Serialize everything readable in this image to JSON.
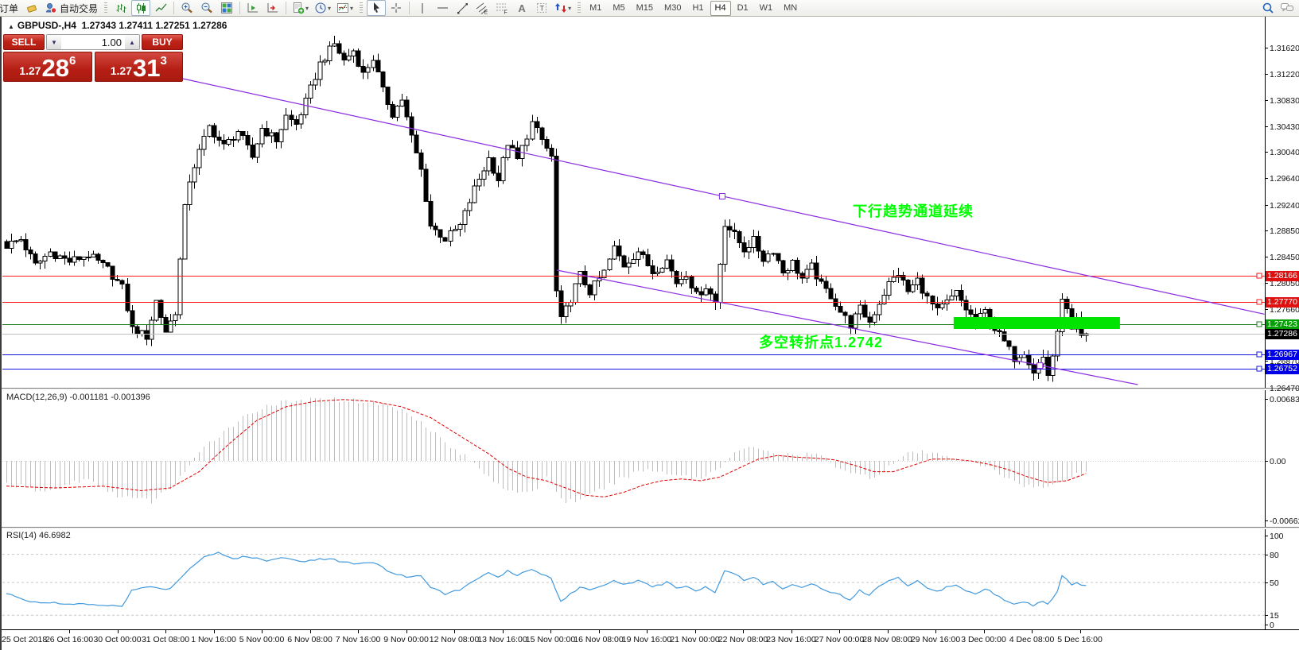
{
  "toolbar": {
    "order_label": "订单",
    "autotrade_label": "自动交易",
    "timeframes": [
      "M1",
      "M5",
      "M15",
      "M30",
      "H1",
      "H4",
      "D1",
      "W1",
      "MN"
    ],
    "active_timeframe": "H4"
  },
  "header": {
    "collapse_icon": "▲",
    "title": "GBPUSD-,H4",
    "ohlc": "1.27343 1.27411 1.27251 1.27286"
  },
  "trade": {
    "sell_label": "SELL",
    "buy_label": "BUY",
    "volume": "1.00",
    "sell_frac": "1.27",
    "sell_big": "28",
    "sell_sup": "6",
    "buy_frac": "1.27",
    "buy_big": "31",
    "buy_sup": "3"
  },
  "annotations": {
    "channel_text": "下行趋势通道延续",
    "pivot_text": "多空转折点1.2742",
    "color": "#00FF00"
  },
  "price_axis": {
    "labels": [
      "1.31620",
      "1.31220",
      "1.30830",
      "1.30430",
      "1.30040",
      "1.29640",
      "1.29240",
      "1.28850",
      "1.28450",
      "1.28050",
      "1.27660",
      "1.27270",
      "1.26870",
      "1.26470"
    ]
  },
  "hlines": [
    {
      "label": "1.28166",
      "price": 1.28166,
      "line_color": "#FF1A1A",
      "tag_bg": "#E01010",
      "square": true
    },
    {
      "label": "1.27770",
      "price": 1.2777,
      "line_color": "#FF1A1A",
      "tag_bg": "#E01010",
      "square": true
    },
    {
      "label": "1.27423",
      "price": 1.27423,
      "line_color": "#1D7A1D",
      "tag_bg": "#00A000",
      "square": true
    },
    {
      "label": "1.27286",
      "price": 1.27286,
      "line_color": "#C0C0C0",
      "tag_bg": "#000000",
      "square": false
    },
    {
      "label": "1.26967",
      "price": 1.26967,
      "line_color": "#1414E0",
      "tag_bg": "#0000E8",
      "square": true
    },
    {
      "label": "1.26752",
      "price": 1.26752,
      "line_color": "#1414E0",
      "tag_bg": "#0000E8",
      "square": true
    }
  ],
  "macd": {
    "label": "MACD(12,26,9) -0.001181 -0.001396",
    "axis_labels": [
      "0.006831",
      "0.00",
      "-0.006627"
    ],
    "axis_values": [
      0.006831,
      0,
      -0.006627
    ]
  },
  "rsi": {
    "label": "RSI(14) 46.6982",
    "axis_labels": [
      "100",
      "80",
      "50",
      "15",
      "0"
    ],
    "axis_values": [
      100,
      80,
      50,
      15,
      0
    ],
    "level_lines": [
      80,
      50,
      15
    ]
  },
  "date_axis": [
    "25 Oct 2018",
    "26 Oct 16:00",
    "30 Oct 00:00",
    "31 Oct 08:00",
    "1 Nov 16:00",
    "5 Nov 00:00",
    "6 Nov 08:00",
    "7 Nov 16:00",
    "9 Nov 00:00",
    "12 Nov 08:00",
    "13 Nov 16:00",
    "15 Nov 00:00",
    "16 Nov 08:00",
    "19 Nov 16:00",
    "21 Nov 00:00",
    "22 Nov 08:00",
    "23 Nov 16:00",
    "27 Nov 00:00",
    "28 Nov 08:00",
    "29 Nov 16:00",
    "3 Dec 00:00",
    "4 Dec 08:00",
    "5 Dec 16:00"
  ],
  "chart_data": {
    "type": "candlestick_with_indicators",
    "symbol": "GBPUSD",
    "timeframe": "H4",
    "bars": 225,
    "price_range_visible": [
      1.2647,
      1.3162
    ],
    "last_close": 1.27286,
    "price_keyframes": [
      [
        0,
        1.2862
      ],
      [
        3,
        1.2872
      ],
      [
        6,
        1.2832
      ],
      [
        9,
        1.2852
      ],
      [
        13,
        1.2838
      ],
      [
        17,
        1.2848
      ],
      [
        21,
        1.2826
      ],
      [
        24,
        1.2798
      ],
      [
        26,
        1.2736
      ],
      [
        29,
        1.2724
      ],
      [
        31,
        1.2778
      ],
      [
        33,
        1.2732
      ],
      [
        35,
        1.2762
      ],
      [
        37,
        1.2918
      ],
      [
        38,
        1.2962
      ],
      [
        40,
        1.3004
      ],
      [
        42,
        1.3042
      ],
      [
        45,
        1.3012
      ],
      [
        48,
        1.3036
      ],
      [
        51,
        1.2996
      ],
      [
        53,
        1.304
      ],
      [
        56,
        1.3022
      ],
      [
        58,
        1.3058
      ],
      [
        60,
        1.3046
      ],
      [
        62,
        1.308
      ],
      [
        65,
        1.3138
      ],
      [
        68,
        1.3168
      ],
      [
        70,
        1.3142
      ],
      [
        72,
        1.3158
      ],
      [
        74,
        1.3122
      ],
      [
        76,
        1.3146
      ],
      [
        78,
        1.3096
      ],
      [
        80,
        1.3062
      ],
      [
        82,
        1.3084
      ],
      [
        84,
        1.3026
      ],
      [
        86,
        1.2976
      ],
      [
        88,
        1.2892
      ],
      [
        91,
        1.2872
      ],
      [
        94,
        1.2892
      ],
      [
        97,
        1.2948
      ],
      [
        100,
        1.2994
      ],
      [
        102,
        1.2962
      ],
      [
        104,
        1.3018
      ],
      [
        106,
        1.2992
      ],
      [
        109,
        1.3048
      ],
      [
        111,
        1.3022
      ],
      [
        113,
        1.2996
      ],
      [
        114,
        1.2792
      ],
      [
        115,
        1.2748
      ],
      [
        117,
        1.2782
      ],
      [
        119,
        1.2818
      ],
      [
        121,
        1.2792
      ],
      [
        124,
        1.2822
      ],
      [
        126,
        1.2858
      ],
      [
        128,
        1.2832
      ],
      [
        131,
        1.2854
      ],
      [
        134,
        1.2822
      ],
      [
        137,
        1.284
      ],
      [
        139,
        1.2806
      ],
      [
        141,
        1.282
      ],
      [
        143,
        1.2786
      ],
      [
        145,
        1.28
      ],
      [
        147,
        1.2776
      ],
      [
        149,
        1.2896
      ],
      [
        151,
        1.2878
      ],
      [
        153,
        1.2856
      ],
      [
        155,
        1.287
      ],
      [
        157,
        1.2842
      ],
      [
        159,
        1.2856
      ],
      [
        161,
        1.2822
      ],
      [
        163,
        1.2836
      ],
      [
        165,
        1.2812
      ],
      [
        167,
        1.283
      ],
      [
        169,
        1.2802
      ],
      [
        171,
        1.2786
      ],
      [
        173,
        1.2762
      ],
      [
        175,
        1.2742
      ],
      [
        177,
        1.2766
      ],
      [
        179,
        1.2746
      ],
      [
        181,
        1.2776
      ],
      [
        183,
        1.2804
      ],
      [
        185,
        1.282
      ],
      [
        187,
        1.2792
      ],
      [
        189,
        1.281
      ],
      [
        191,
        1.2782
      ],
      [
        193,
        1.2762
      ],
      [
        195,
        1.2776
      ],
      [
        197,
        1.279
      ],
      [
        199,
        1.2766
      ],
      [
        201,
        1.2746
      ],
      [
        203,
        1.2762
      ],
      [
        205,
        1.2736
      ],
      [
        207,
        1.2716
      ],
      [
        209,
        1.2692
      ],
      [
        211,
        1.2702
      ],
      [
        213,
        1.2672
      ],
      [
        215,
        1.2692
      ],
      [
        216,
        1.2666
      ],
      [
        218,
        1.2726
      ],
      [
        219,
        1.2786
      ],
      [
        220,
        1.2762
      ],
      [
        221,
        1.2732
      ],
      [
        222,
        1.2746
      ],
      [
        223,
        1.2722
      ],
      [
        224,
        1.27286
      ]
    ],
    "macd_hist_keyframes": [
      [
        0,
        -0.0025
      ],
      [
        8,
        -0.0035
      ],
      [
        16,
        -0.002
      ],
      [
        24,
        -0.004
      ],
      [
        30,
        -0.0045
      ],
      [
        34,
        -0.003
      ],
      [
        38,
        -0.0005
      ],
      [
        42,
        0.002
      ],
      [
        48,
        0.0045
      ],
      [
        54,
        0.0062
      ],
      [
        60,
        0.0066
      ],
      [
        66,
        0.00683
      ],
      [
        72,
        0.0067
      ],
      [
        78,
        0.0063
      ],
      [
        84,
        0.0052
      ],
      [
        88,
        0.0035
      ],
      [
        92,
        0.0015
      ],
      [
        95,
        0.0005
      ],
      [
        98,
        -0.0008
      ],
      [
        102,
        -0.0025
      ],
      [
        106,
        -0.0038
      ],
      [
        110,
        -0.003
      ],
      [
        112,
        -0.0015
      ],
      [
        114,
        -0.0035
      ],
      [
        116,
        -0.0045
      ],
      [
        120,
        -0.0042
      ],
      [
        124,
        -0.003
      ],
      [
        128,
        -0.0018
      ],
      [
        132,
        -0.001
      ],
      [
        136,
        -0.0012
      ],
      [
        140,
        -0.0016
      ],
      [
        144,
        -0.002
      ],
      [
        148,
        -0.0005
      ],
      [
        152,
        0.0012
      ],
      [
        156,
        0.0015
      ],
      [
        160,
        0.0008
      ],
      [
        164,
        0.0005
      ],
      [
        168,
        0.0008
      ],
      [
        172,
        -0.0005
      ],
      [
        176,
        -0.0015
      ],
      [
        180,
        -0.0018
      ],
      [
        184,
        -0.0002
      ],
      [
        188,
        0.001
      ],
      [
        192,
        0.0008
      ],
      [
        196,
        0.0005
      ],
      [
        200,
        -0.0002
      ],
      [
        204,
        -0.0008
      ],
      [
        208,
        -0.002
      ],
      [
        212,
        -0.0028
      ],
      [
        216,
        -0.003
      ],
      [
        220,
        -0.0018
      ],
      [
        224,
        -0.001181
      ]
    ],
    "macd_signal_keyframes": [
      [
        0,
        -0.0028
      ],
      [
        10,
        -0.003
      ],
      [
        20,
        -0.0028
      ],
      [
        28,
        -0.0033
      ],
      [
        34,
        -0.003
      ],
      [
        40,
        -0.0012
      ],
      [
        46,
        0.0018
      ],
      [
        52,
        0.0045
      ],
      [
        58,
        0.006
      ],
      [
        64,
        0.0066
      ],
      [
        70,
        0.0068
      ],
      [
        76,
        0.0066
      ],
      [
        82,
        0.006
      ],
      [
        88,
        0.0048
      ],
      [
        94,
        0.0028
      ],
      [
        100,
        0.0008
      ],
      [
        104,
        -0.0008
      ],
      [
        108,
        -0.0018
      ],
      [
        112,
        -0.0022
      ],
      [
        116,
        -0.003
      ],
      [
        120,
        -0.0038
      ],
      [
        124,
        -0.004
      ],
      [
        128,
        -0.0035
      ],
      [
        132,
        -0.0027
      ],
      [
        136,
        -0.0022
      ],
      [
        140,
        -0.002
      ],
      [
        144,
        -0.0022
      ],
      [
        148,
        -0.0018
      ],
      [
        152,
        -0.0008
      ],
      [
        156,
        0.0002
      ],
      [
        160,
        0.0006
      ],
      [
        164,
        0.0004
      ],
      [
        168,
        0.0003
      ],
      [
        172,
        0.0001
      ],
      [
        176,
        -0.0005
      ],
      [
        180,
        -0.0012
      ],
      [
        184,
        -0.0012
      ],
      [
        188,
        -0.0005
      ],
      [
        192,
        0.0002
      ],
      [
        196,
        0.0002
      ],
      [
        200,
        0.0
      ],
      [
        204,
        -0.0004
      ],
      [
        208,
        -0.001
      ],
      [
        212,
        -0.0018
      ],
      [
        216,
        -0.0024
      ],
      [
        220,
        -0.0022
      ],
      [
        224,
        -0.001396
      ]
    ],
    "rsi_keyframes": [
      [
        0,
        38
      ],
      [
        5,
        30
      ],
      [
        12,
        27
      ],
      [
        20,
        26
      ],
      [
        24,
        24
      ],
      [
        26,
        42
      ],
      [
        30,
        45
      ],
      [
        34,
        43
      ],
      [
        37,
        60
      ],
      [
        41,
        78
      ],
      [
        44,
        82
      ],
      [
        47,
        75
      ],
      [
        50,
        78
      ],
      [
        54,
        73
      ],
      [
        58,
        77
      ],
      [
        62,
        72
      ],
      [
        65,
        76
      ],
      [
        68,
        74
      ],
      [
        72,
        70
      ],
      [
        76,
        72
      ],
      [
        80,
        60
      ],
      [
        84,
        55
      ],
      [
        86,
        58
      ],
      [
        88,
        45
      ],
      [
        91,
        38
      ],
      [
        94,
        42
      ],
      [
        97,
        52
      ],
      [
        100,
        60
      ],
      [
        102,
        55
      ],
      [
        104,
        62
      ],
      [
        106,
        58
      ],
      [
        109,
        65
      ],
      [
        111,
        58
      ],
      [
        113,
        55
      ],
      [
        115,
        30
      ],
      [
        117,
        38
      ],
      [
        119,
        45
      ],
      [
        121,
        42
      ],
      [
        124,
        48
      ],
      [
        126,
        52
      ],
      [
        128,
        48
      ],
      [
        131,
        52
      ],
      [
        134,
        45
      ],
      [
        137,
        50
      ],
      [
        139,
        44
      ],
      [
        141,
        47
      ],
      [
        143,
        41
      ],
      [
        145,
        45
      ],
      [
        147,
        40
      ],
      [
        149,
        62
      ],
      [
        151,
        60
      ],
      [
        153,
        52
      ],
      [
        155,
        56
      ],
      [
        157,
        48
      ],
      [
        159,
        52
      ],
      [
        161,
        44
      ],
      [
        163,
        48
      ],
      [
        165,
        44
      ],
      [
        167,
        49
      ],
      [
        169,
        44
      ],
      [
        171,
        40
      ],
      [
        173,
        36
      ],
      [
        175,
        32
      ],
      [
        177,
        42
      ],
      [
        179,
        36
      ],
      [
        181,
        46
      ],
      [
        183,
        52
      ],
      [
        185,
        56
      ],
      [
        187,
        47
      ],
      [
        189,
        52
      ],
      [
        191,
        44
      ],
      [
        193,
        40
      ],
      [
        195,
        45
      ],
      [
        197,
        48
      ],
      [
        199,
        42
      ],
      [
        201,
        38
      ],
      [
        203,
        44
      ],
      [
        205,
        38
      ],
      [
        207,
        32
      ],
      [
        209,
        26
      ],
      [
        211,
        30
      ],
      [
        213,
        25
      ],
      [
        215,
        30
      ],
      [
        216,
        26
      ],
      [
        218,
        40
      ],
      [
        219,
        58
      ],
      [
        220,
        54
      ],
      [
        221,
        48
      ],
      [
        222,
        50
      ],
      [
        223,
        47
      ],
      [
        224,
        46.6982
      ]
    ],
    "highlight_rect": {
      "bar_from": 196.5,
      "bar_to": 231,
      "price_top": 1.27537,
      "price_bottom": 1.27356,
      "color": "#00E400"
    },
    "channel": {
      "color": "#8A2BE2",
      "upper": {
        "bar1": 36.6,
        "p1": 1.31151,
        "bar2": 261,
        "p2": 1.2758
      },
      "lower": {
        "bar1": 114.2,
        "p1": 1.28248,
        "bar2": 234.7,
        "p2": 1.26513
      },
      "handles": [
        {
          "bar": 148.5,
          "p": 1.29368
        },
        {
          "bar": 214.4,
          "p": 1.26801
        }
      ]
    }
  }
}
